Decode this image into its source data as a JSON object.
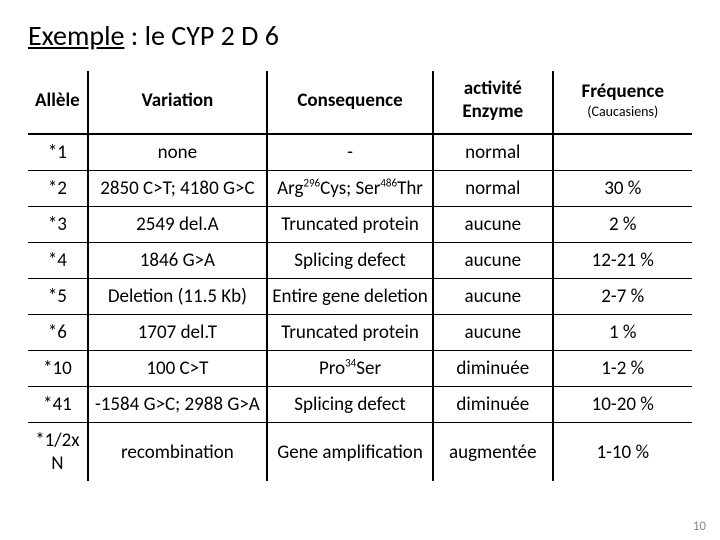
{
  "title_underlined": "Exemple",
  "title_rest": " : le CYP 2 D 6",
  "headers": {
    "allele": "Allèle",
    "variation": "Variation",
    "consequence": "Consequence",
    "activity": "activité Enzyme",
    "freq": "Fréquence",
    "freq_sub": "(Caucasiens)"
  },
  "rows": [
    {
      "allele": "*1",
      "variation": "none",
      "consequence": "-",
      "activity": "normal",
      "freq": ""
    },
    {
      "allele": "*2",
      "variation": "2850 C>T; 4180 G>C",
      "consequence": "Arg<sup>296</sup>Cys; Ser<sup>486</sup>Thr",
      "activity": "normal",
      "freq": "30 %"
    },
    {
      "allele": "*3",
      "variation": "2549 del.A",
      "consequence": "Truncated protein",
      "activity": "aucune",
      "freq": "2 %"
    },
    {
      "allele": "*4",
      "variation": "1846 G>A",
      "consequence": "Splicing defect",
      "activity": "aucune",
      "freq": "12-21 %"
    },
    {
      "allele": "*5",
      "variation": "Deletion (11.5 Kb)",
      "consequence": "Entire gene deletion",
      "activity": "aucune",
      "freq": "2-7 %"
    },
    {
      "allele": "*6",
      "variation": "1707 del.T",
      "consequence": "Truncated protein",
      "activity": "aucune",
      "freq": "1 %"
    },
    {
      "allele": "*10",
      "variation": "100 C>T",
      "consequence": "Pro<sup>34</sup>Ser",
      "activity": "diminuée",
      "freq": "1-2 %"
    },
    {
      "allele": "*41",
      "variation": "-1584 G>C; 2988 G>A",
      "consequence": "Splicing defect",
      "activity": "diminuée",
      "freq": "10-20 %"
    },
    {
      "allele": "*1/2x N",
      "variation": "recombination",
      "consequence": "Gene amplification",
      "activity": "augmentée",
      "freq": "1-10 %"
    }
  ],
  "page_number": "10"
}
